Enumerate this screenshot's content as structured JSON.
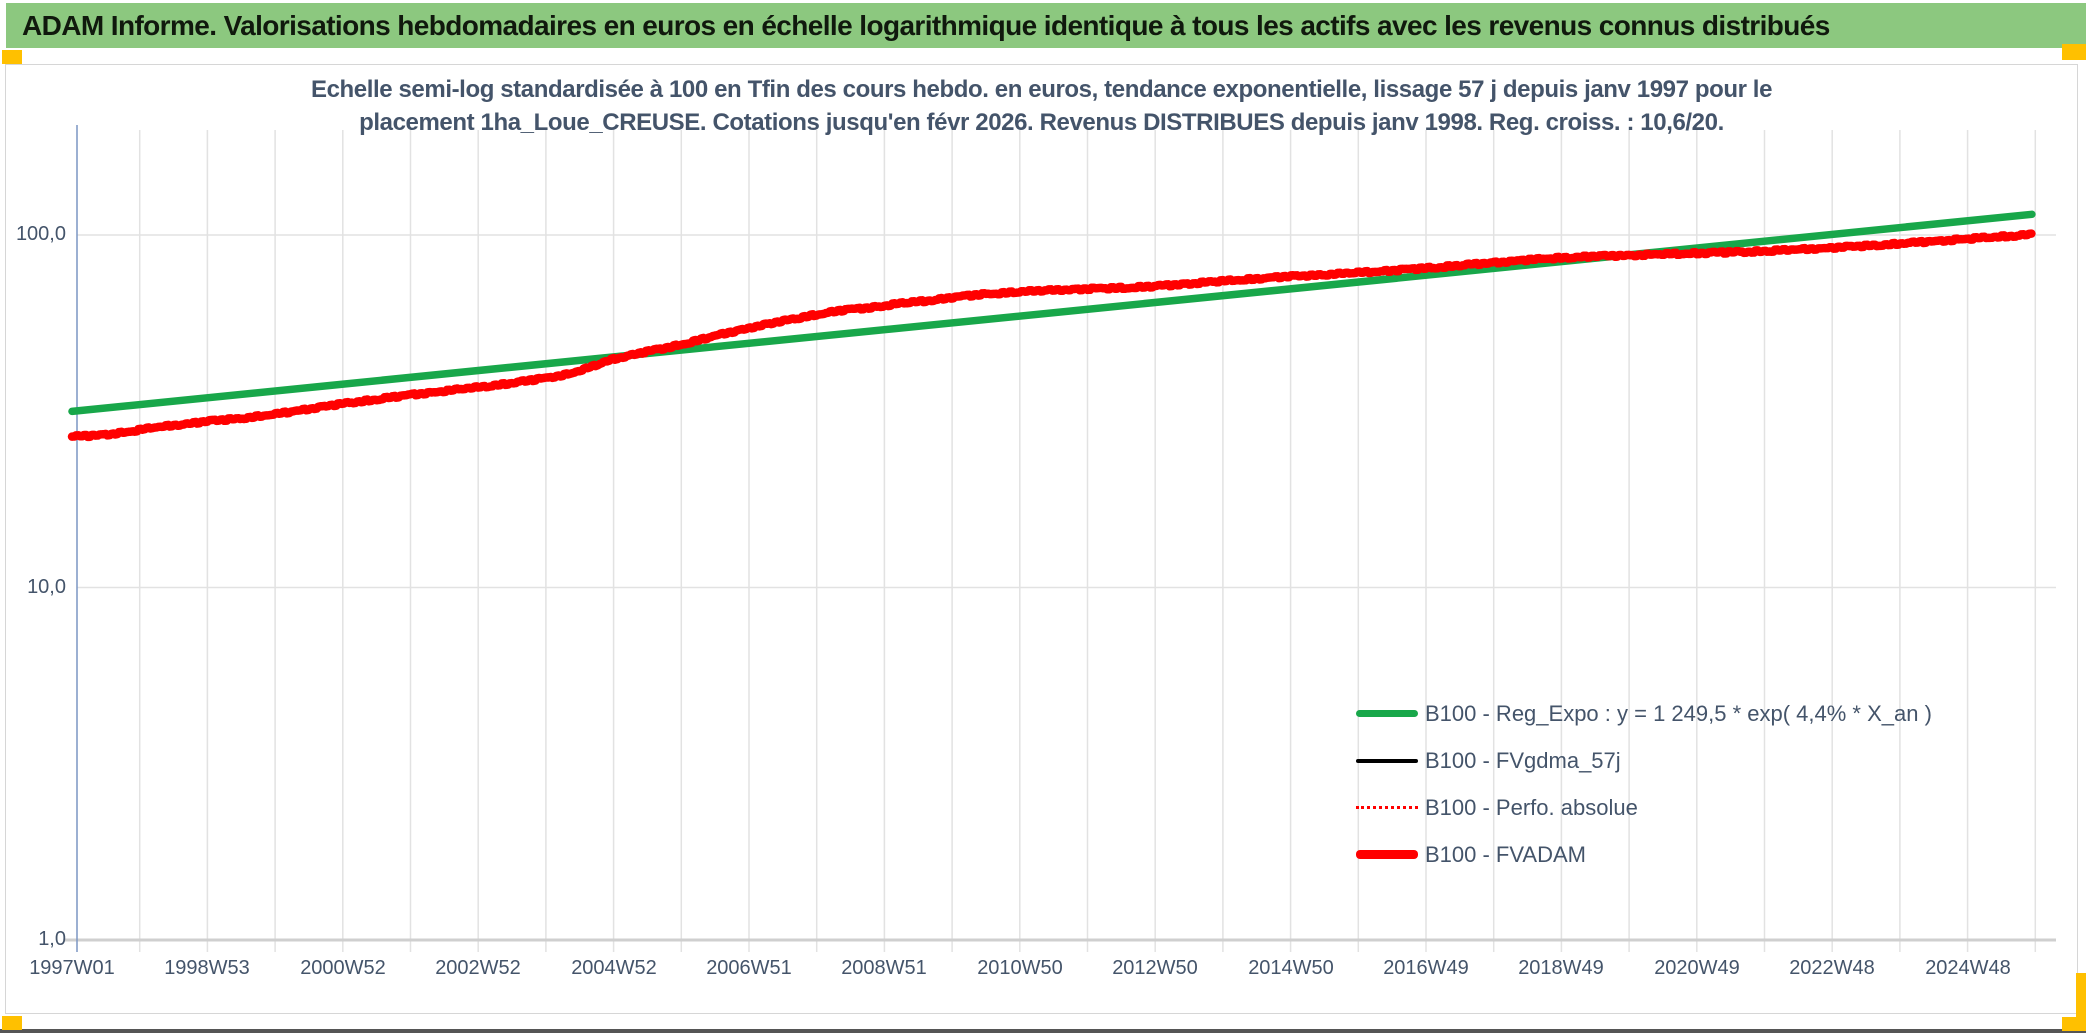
{
  "header": {
    "title": "ADAM Informe. Valorisations hebdomadaires en euros en échelle logarithmique identique à tous les actifs avec les revenus connus distribués",
    "bg_color": "#8CC87F",
    "text_color": "#10190d"
  },
  "accents": {
    "color": "#FFC000"
  },
  "chart_data": {
    "type": "line",
    "title_line1": "Echelle semi-log standardisée à 100 en Tfin des cours hebdo. en euros, tendance exponentielle, lissage 57 j depuis janv 1997 pour le",
    "title_line2": "placement 1ha_Loue_CREUSE. Cotations jusqu'en févr 2026. Revenus DISTRIBUES depuis janv 1998. Reg. croiss. : 10,6/20.",
    "y_axis": {
      "scale": "log10",
      "tick_labels": [
        "100,0",
        "10,0",
        "1,0"
      ],
      "tick_values": [
        100,
        10,
        1
      ],
      "range": [
        1,
        200
      ],
      "text_color": "#44546A"
    },
    "x_axis": {
      "tick_labels": [
        "1997W01",
        "1998W53",
        "2000W52",
        "2002W52",
        "2004W52",
        "2006W51",
        "2008W51",
        "2010W50",
        "2012W50",
        "2014W50",
        "2016W49",
        "2018W49",
        "2020W49",
        "2022W48",
        "2024W48"
      ],
      "start_year": 1997.0,
      "end_year": 2026.1,
      "gridline_interval_years": 1,
      "text_color": "#44546A"
    },
    "grid_color": "#E2E2E2",
    "axis_line_color": "#7B96C4",
    "baseline_color": "#CFCFCF",
    "legend_position": "inside-right-lower",
    "series": [
      {
        "name": "B100 - Reg_Expo : y = 1 249,5 * exp( 4,4% *  X_an )",
        "color": "#18A74A",
        "style": "solid",
        "width": 7.5,
        "years": [
          1997.0,
          2025.95
        ],
        "values": [
          31.6,
          114.5
        ]
      },
      {
        "name": "B100 - FVgdma_57j",
        "color": "#000000",
        "style": "solid",
        "width": 4,
        "coincides_with": "B100 - FVADAM"
      },
      {
        "name": "B100 - Perfo. absolue",
        "color": "#FF0000",
        "style": "dotted",
        "width": 3,
        "coincides_with": "B100 - FVADAM"
      },
      {
        "name": "B100 - FVADAM",
        "color": "#FF0000",
        "style": "solid",
        "width": 8.5,
        "years": [
          1997.0,
          1997.4,
          1997.8,
          1998.2,
          1998.6,
          1999.0,
          1999.5,
          2000.0,
          2000.4,
          2000.8,
          2001.2,
          2001.6,
          2002.0,
          2002.5,
          2003.0,
          2003.5,
          2004.0,
          2004.3,
          2004.6,
          2005.0,
          2005.4,
          2005.8,
          2006.2,
          2006.6,
          2007.0,
          2007.5,
          2008.0,
          2008.4,
          2008.8,
          2009.2,
          2009.6,
          2010.0,
          2010.5,
          2011.0,
          2011.5,
          2012.0,
          2012.5,
          2013.0,
          2013.5,
          2014.0,
          2014.5,
          2015.0,
          2015.5,
          2016.0,
          2016.5,
          2017.0,
          2017.5,
          2018.0,
          2018.5,
          2019.0,
          2019.5,
          2020.0,
          2020.5,
          2021.0,
          2021.5,
          2022.0,
          2022.5,
          2023.0,
          2023.5,
          2024.0,
          2024.5,
          2025.0,
          2025.5,
          2025.95
        ],
        "values": [
          26.8,
          27.0,
          27.6,
          28.4,
          29.0,
          29.6,
          30.2,
          31.0,
          31.9,
          32.8,
          33.6,
          34.4,
          35.2,
          36.1,
          37.0,
          38.0,
          39.3,
          40.2,
          41.8,
          44.5,
          46.3,
          47.9,
          50.0,
          52.3,
          54.5,
          57.0,
          59.5,
          61.2,
          62.3,
          63.8,
          65.0,
          66.5,
          68.0,
          69.0,
          69.8,
          70.3,
          70.8,
          71.5,
          72.8,
          74.0,
          75.2,
          76.3,
          77.2,
          78.2,
          79.3,
          80.5,
          82.0,
          83.5,
          85.0,
          86.2,
          87.0,
          87.6,
          88.2,
          88.8,
          89.3,
          90.0,
          91.0,
          92.0,
          93.2,
          94.5,
          96.0,
          97.5,
          99.0,
          100.3
        ]
      }
    ]
  }
}
